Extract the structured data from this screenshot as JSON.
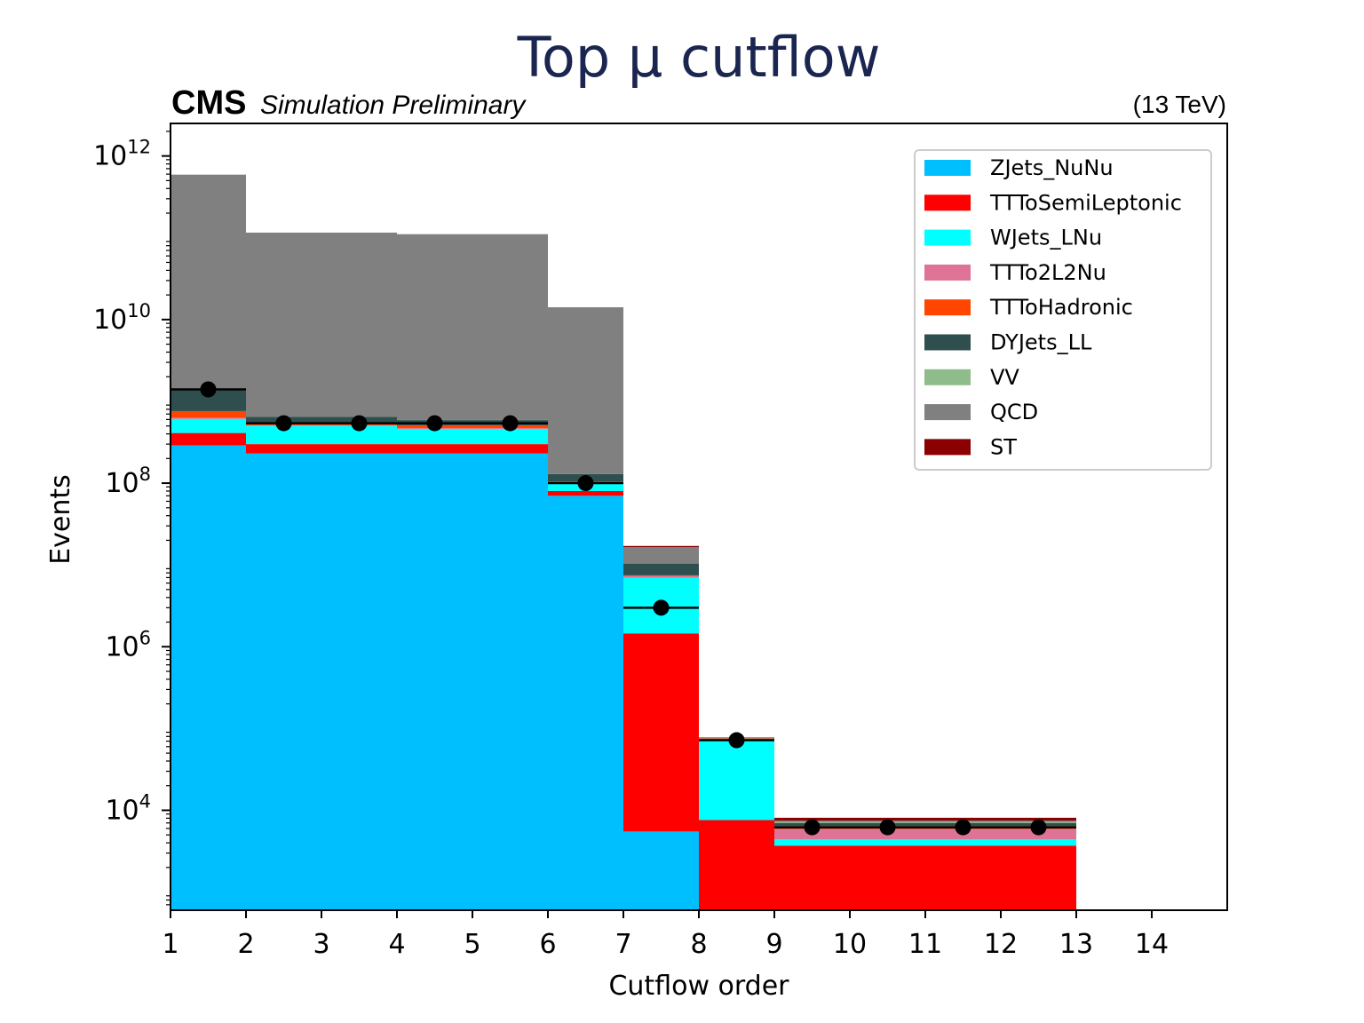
{
  "chart_data": {
    "type": "bar",
    "stacked": true,
    "title": "Top μ cutflow",
    "experiment_label": "CMS",
    "experiment_sublabel": "Simulation Preliminary",
    "energy_label": "(13 TeV)",
    "xlabel": "Cutflow order",
    "ylabel": "Events",
    "yscale": "log",
    "xlim": [
      1,
      15
    ],
    "ylim": [
      600,
      2500000000000.0
    ],
    "xticks": [
      1,
      2,
      3,
      4,
      5,
      6,
      7,
      8,
      9,
      10,
      11,
      12,
      13,
      14
    ],
    "yticks": [
      {
        "value": 10000,
        "base": "10",
        "exp": "4"
      },
      {
        "value": 1000000,
        "base": "10",
        "exp": "6"
      },
      {
        "value": 100000000,
        "base": "10",
        "exp": "8"
      },
      {
        "value": 10000000000,
        "base": "10",
        "exp": "10"
      },
      {
        "value": 1000000000000,
        "base": "10",
        "exp": "12"
      }
    ],
    "bin_edges": [
      1,
      2,
      3,
      4,
      5,
      6,
      7,
      8,
      9,
      10,
      11,
      12,
      13
    ],
    "grid": false,
    "legend_position": "top-right",
    "series": [
      {
        "name": "ZJets_NuNu",
        "color": "#00bfff",
        "values": [
          290000000.0,
          230000000.0,
          230000000.0,
          230000000.0,
          230000000.0,
          70000000.0,
          5500,
          0,
          0,
          0,
          0,
          0
        ]
      },
      {
        "name": "TTToSemiLeptonic",
        "color": "#ff0000",
        "values": [
          120000000.0,
          70000000.0,
          70000000.0,
          70000000.0,
          70000000.0,
          10000000.0,
          1450000.0,
          7600,
          3700,
          3700,
          3700,
          3700
        ]
      },
      {
        "name": "WJets_LNu",
        "color": "#00ffff",
        "values": [
          200000000.0,
          200000000.0,
          200000000.0,
          160000000.0,
          160000000.0,
          18000000.0,
          5500000.0,
          65000.0,
          700,
          700,
          700,
          700
        ]
      },
      {
        "name": "TTTo2L2Nu",
        "color": "#de7396",
        "values": [
          20000000.0,
          10000000.0,
          10000000.0,
          10000000.0,
          10000000.0,
          2000000.0,
          400000.0,
          2000,
          1500,
          1500,
          1500,
          1500
        ]
      },
      {
        "name": "TTToHadronic",
        "color": "#ff4500",
        "values": [
          130000000.0,
          20000000.0,
          20000000.0,
          40000000.0,
          40000000.0,
          5000000.0,
          100000.0,
          1000,
          500,
          500,
          500,
          500
        ]
      },
      {
        "name": "DYJets_LL",
        "color": "#2f4f4f",
        "values": [
          650000000.0,
          120000000.0,
          120000000.0,
          80000000.0,
          80000000.0,
          25000000.0,
          3000000.0,
          500,
          600,
          600,
          600,
          600
        ]
      },
      {
        "name": "VV",
        "color": "#8fbc8b",
        "values": [
          5000000.0,
          2000000.0,
          2000000.0,
          2000000.0,
          2000000.0,
          1000000.0,
          100000.0,
          300,
          200,
          200,
          200,
          200
        ]
      },
      {
        "name": "QCD",
        "color": "#808080",
        "values": [
          590000000000.0,
          115000000000.0,
          115000000000.0,
          110000000000.0,
          110000000000.0,
          14000000000.0,
          6000000.0,
          400,
          300,
          300,
          300,
          300
        ]
      },
      {
        "name": "ST",
        "color": "#8b0000",
        "values": [
          5000000.0,
          2000000.0,
          2000000.0,
          2000000.0,
          2000000.0,
          1000000.0,
          500000.0,
          900,
          600,
          600,
          600,
          600
        ]
      }
    ],
    "data_points": {
      "x": [
        1.5,
        2.5,
        3.5,
        4.5,
        5.5,
        6.5,
        7.5,
        8.5,
        9.5,
        10.5,
        11.5,
        12.5
      ],
      "y": [
        1400000000.0,
        540000000.0,
        540000000.0,
        540000000.0,
        540000000.0,
        100000000.0,
        3000000.0,
        72000.0,
        6200,
        6200,
        6200,
        6200
      ],
      "color": "#000000"
    }
  }
}
